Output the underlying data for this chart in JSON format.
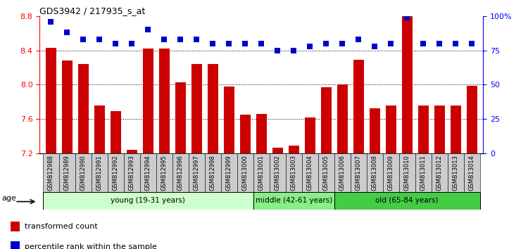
{
  "title": "GDS3942 / 217935_s_at",
  "samples": [
    "GSM812988",
    "GSM812989",
    "GSM812990",
    "GSM812991",
    "GSM812992",
    "GSM812993",
    "GSM812994",
    "GSM812995",
    "GSM812996",
    "GSM812997",
    "GSM812998",
    "GSM812999",
    "GSM813000",
    "GSM813001",
    "GSM813002",
    "GSM813003",
    "GSM813004",
    "GSM813005",
    "GSM813006",
    "GSM813007",
    "GSM813008",
    "GSM813009",
    "GSM813010",
    "GSM813011",
    "GSM813012",
    "GSM813013",
    "GSM813014"
  ],
  "bar_values": [
    8.43,
    8.28,
    8.24,
    7.76,
    7.69,
    7.24,
    8.42,
    8.42,
    8.03,
    8.24,
    8.24,
    7.98,
    7.65,
    7.66,
    7.26,
    7.29,
    7.62,
    7.97,
    8.0,
    8.29,
    7.72,
    7.76,
    8.8,
    7.76,
    7.76,
    7.76,
    7.99
  ],
  "percentile_values": [
    96,
    88,
    83,
    83,
    80,
    80,
    90,
    83,
    83,
    83,
    80,
    80,
    80,
    80,
    75,
    75,
    78,
    80,
    80,
    83,
    78,
    80,
    99,
    80,
    80,
    80,
    80
  ],
  "bar_color": "#cc0000",
  "percentile_color": "#0000cc",
  "ylim_left": [
    7.2,
    8.8
  ],
  "ylim_right": [
    0,
    100
  ],
  "yticks_left": [
    7.2,
    7.6,
    8.0,
    8.4,
    8.8
  ],
  "yticks_right": [
    0,
    25,
    50,
    75,
    100
  ],
  "ytick_labels_right": [
    "0",
    "25",
    "50",
    "75",
    "100%"
  ],
  "grid_values": [
    7.6,
    8.0,
    8.4
  ],
  "groups": [
    {
      "label": "young (19-31 years)",
      "start": 0,
      "end": 13,
      "color": "#ccffcc"
    },
    {
      "label": "middle (42-61 years)",
      "start": 13,
      "end": 18,
      "color": "#88ee88"
    },
    {
      "label": "old (65-84 years)",
      "start": 18,
      "end": 27,
      "color": "#44cc44"
    }
  ],
  "age_label": "age",
  "legend_bar_label": "transformed count",
  "legend_pct_label": "percentile rank within the sample",
  "background_color": "#ffffff",
  "tick_area_color": "#cccccc"
}
